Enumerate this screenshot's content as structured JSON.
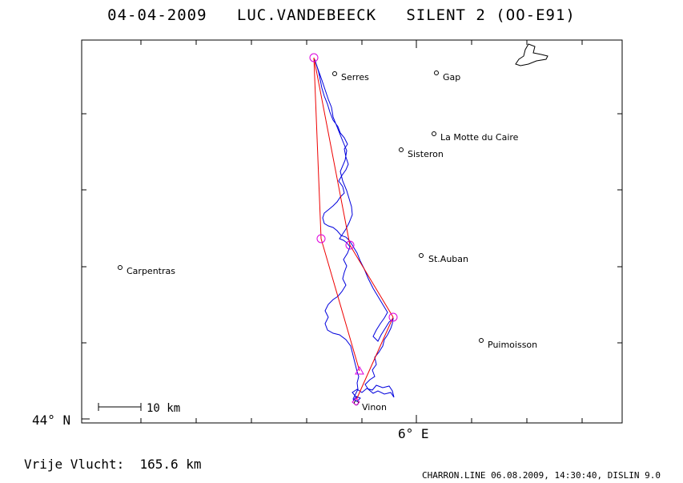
{
  "header": {
    "date": "04-04-2009",
    "pilot": "LUC.VANDEBEECK",
    "glider": "SILENT 2 (OO-E91)"
  },
  "axes": {
    "lat_label": "44° N",
    "lon_label": "6° E"
  },
  "scale_bar": {
    "label": "10 km"
  },
  "places": [
    {
      "name": "Serres"
    },
    {
      "name": "Gap"
    },
    {
      "name": "La Motte du Caire"
    },
    {
      "name": "Sisteron"
    },
    {
      "name": "St.Auban"
    },
    {
      "name": "Carpentras"
    },
    {
      "name": "Puimoisson"
    },
    {
      "name": "Vinon"
    }
  ],
  "distance": {
    "label": "Vrije Vlucht:",
    "value": "165.6 km"
  },
  "footer": "CHARRON.LINE 06.08.2009, 14:30:40, DISLIN 9.0",
  "colors": {
    "track": "#0000dd",
    "task_line": "#ee0000",
    "turnpoint": "#dd00dd",
    "frame": "#000000"
  }
}
